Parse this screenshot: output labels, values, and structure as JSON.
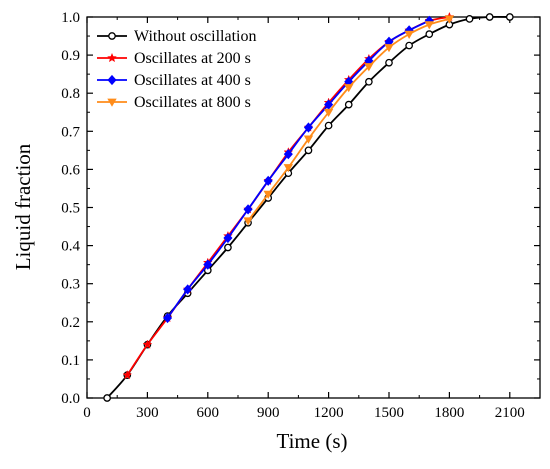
{
  "chart_data": {
    "type": "line",
    "title": "",
    "xlabel": "Time (s)",
    "ylabel": "Liquid fraction",
    "xlim": [
      0,
      2250
    ],
    "ylim": [
      0,
      1.0
    ],
    "xticks": [
      0,
      300,
      600,
      900,
      1200,
      1500,
      1800,
      2100
    ],
    "yticks": [
      0.0,
      0.1,
      0.2,
      0.3,
      0.4,
      0.5,
      0.6,
      0.7,
      0.8,
      0.9,
      1.0
    ],
    "x_tick_labels": [
      "0",
      "300",
      "600",
      "900",
      "1200",
      "1500",
      "1800",
      "2100"
    ],
    "y_tick_labels": [
      "0.0",
      "0.1",
      "0.2",
      "0.3",
      "0.4",
      "0.5",
      "0.6",
      "0.7",
      "0.8",
      "0.9",
      "1.0"
    ],
    "grid": false,
    "legend_position": "top-left",
    "series": [
      {
        "name": "Without oscillation",
        "color": "#000000",
        "marker": "circle",
        "x": [
          100,
          200,
          300,
          400,
          500,
          600,
          700,
          800,
          900,
          1000,
          1100,
          1200,
          1300,
          1400,
          1500,
          1600,
          1700,
          1800,
          1900,
          2000,
          2100
        ],
        "y": [
          0.0,
          0.06,
          0.14,
          0.215,
          0.275,
          0.335,
          0.395,
          0.46,
          0.525,
          0.59,
          0.65,
          0.715,
          0.77,
          0.83,
          0.88,
          0.925,
          0.955,
          0.98,
          0.995,
          1.0,
          1.0
        ]
      },
      {
        "name": "Oscillates at 200 s",
        "color": "#ff0000",
        "marker": "star",
        "x": [
          200,
          300,
          400,
          500,
          600,
          700,
          800,
          900,
          1000,
          1100,
          1200,
          1300,
          1400,
          1500,
          1600,
          1700,
          1800
        ],
        "y": [
          0.06,
          0.14,
          0.21,
          0.285,
          0.355,
          0.425,
          0.495,
          0.57,
          0.645,
          0.71,
          0.775,
          0.835,
          0.89,
          0.935,
          0.965,
          0.99,
          1.0
        ]
      },
      {
        "name": "Oscillates at 400 s",
        "color": "#0000ff",
        "marker": "diamond",
        "x": [
          400,
          500,
          600,
          700,
          800,
          900,
          1000,
          1100,
          1200,
          1300,
          1400,
          1500,
          1600,
          1700
        ],
        "y": [
          0.21,
          0.285,
          0.35,
          0.42,
          0.495,
          0.57,
          0.64,
          0.71,
          0.77,
          0.83,
          0.885,
          0.935,
          0.965,
          0.99
        ]
      },
      {
        "name": "Oscillates at 800 s",
        "color": "#ff8c1a",
        "marker": "triangle-down",
        "x": [
          800,
          900,
          1000,
          1100,
          1200,
          1300,
          1400,
          1500,
          1600,
          1700,
          1800
        ],
        "y": [
          0.465,
          0.535,
          0.605,
          0.68,
          0.75,
          0.815,
          0.87,
          0.92,
          0.955,
          0.98,
          0.995
        ]
      }
    ]
  }
}
